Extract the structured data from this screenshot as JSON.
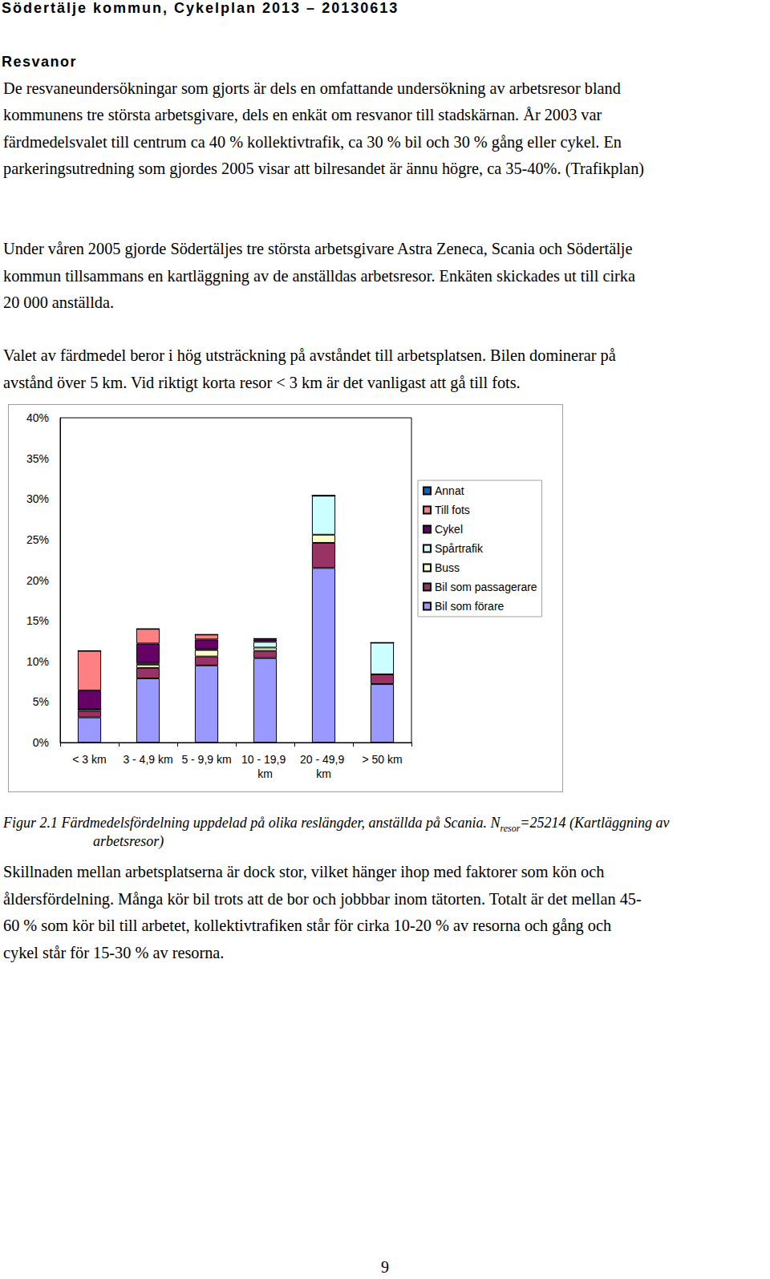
{
  "header": "Södertälje kommun, Cykelplan 2013 – 20130613",
  "section_title": "Resvanor",
  "paragraphs": [
    [
      "De resvaneundersökningar som gjorts är dels en omfattande undersökning av arbetsresor bland",
      "kommunens tre största arbetsgivare, dels en enkät om resvanor till stadskärnan. År 2003 var",
      "färdmedelsvalet till centrum ca 40 % kollektivtrafik, ca 30 % bil och 30 % gång eller cykel. En",
      "parkeringsutredning som gjordes 2005 visar att bilresandet är ännu högre, ca 35-40%. (Trafikplan)"
    ],
    [
      "Under våren 2005 gjorde Södertäljes tre största arbetsgivare Astra Zeneca, Scania och Södertälje",
      "kommun tillsammans en kartläggning av de anställdas arbetsresor. Enkäten skickades ut till cirka",
      "20 000 anställda."
    ],
    [
      "Valet av färdmedel beror i hög utsträckning på avståndet till arbetsplatsen. Bilen dominerar på",
      "avstånd över 5 km. Vid riktigt korta resor < 3 km är det vanligast att gå till fots."
    ]
  ],
  "chart_data": {
    "type": "bar",
    "stacked": true,
    "grid": false,
    "legend": "right",
    "categories": [
      "< 3 km",
      "3 - 4,9 km",
      "5 - 9,9 km",
      "10 - 19,9 km",
      "20 - 49,9 km",
      "> 50 km"
    ],
    "ylim": [
      0,
      40
    ],
    "yticks": [
      {
        "value": 0,
        "label": "0%"
      },
      {
        "value": 5,
        "label": "5%"
      },
      {
        "value": 10,
        "label": "10%"
      },
      {
        "value": 15,
        "label": "15%"
      },
      {
        "value": 20,
        "label": "20%"
      },
      {
        "value": 25,
        "label": "25%"
      },
      {
        "value": 30,
        "label": "30%"
      },
      {
        "value": 35,
        "label": "35%"
      },
      {
        "value": 40,
        "label": "40%"
      }
    ],
    "series": [
      {
        "name": "Bil som förare",
        "color": "#9999ff",
        "values": [
          3.1,
          7.9,
          9.5,
          10.4,
          21.5,
          7.2
        ]
      },
      {
        "name": "Bil som passagerare",
        "color": "#993366",
        "values": [
          0.8,
          1.3,
          1.1,
          0.9,
          3.1,
          1.2
        ]
      },
      {
        "name": "Buss",
        "color": "#ffffcc",
        "values": [
          0.2,
          0.4,
          0.8,
          0.4,
          1.0,
          0
        ]
      },
      {
        "name": "Spårtrafik",
        "color": "#ccffff",
        "values": [
          0,
          0.2,
          0.1,
          0.7,
          4.8,
          3.9
        ]
      },
      {
        "name": "Cykel",
        "color": "#660066",
        "values": [
          2.3,
          2.4,
          1.2,
          0.3,
          0,
          0
        ]
      },
      {
        "name": "Till fots",
        "color": "#ff8080",
        "values": [
          4.9,
          1.8,
          0.6,
          0.1,
          0,
          0
        ]
      },
      {
        "name": "Annat",
        "color": "#0066cc",
        "values": [
          0,
          0,
          0,
          0,
          0,
          0
        ]
      }
    ]
  },
  "caption": {
    "line1_before_subscript": "Figur 2.1 Färdmedelsfördelning uppdelad på olika reslängder, anställda på Scania. N",
    "subscript": "resor",
    "line1_after_subscript": "=25214 (Kartläggning av",
    "line2": "arbetsresor)"
  },
  "closing_paragraph": [
    "Skillnaden mellan arbetsplatserna är dock stor, vilket hänger ihop med faktorer som kön och",
    "åldersfördelning. Många kör bil trots att de bor och jobbbar inom tätorten. Totalt är det mellan 45-",
    "60 % som kör bil till arbetet, kollektivtrafiken står för cirka 10-20 % av resorna och gång och",
    "cykel står för 15-30 % av resorna."
  ],
  "page_number": "9"
}
